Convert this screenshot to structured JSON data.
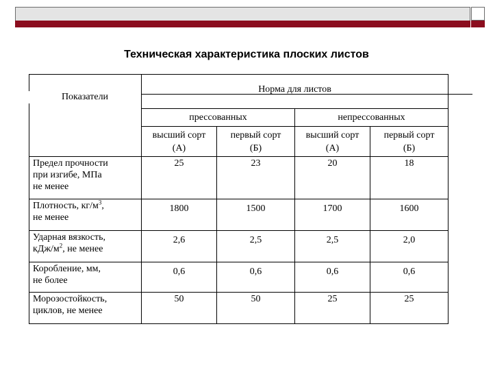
{
  "document": {
    "title": "Техническая характеристика плоских листов",
    "header": {
      "param_col": "Показатели",
      "norm": "Норма для листов",
      "groups": [
        "прессованных",
        "непрессованных"
      ],
      "grades": [
        {
          "line1": "высший сорт",
          "line2": "(А)"
        },
        {
          "line1": "первый сорт",
          "line2": "(Б)"
        },
        {
          "line1": "высший сорт",
          "line2": "(А)"
        },
        {
          "line1": "первый сорт",
          "line2": "(Б)"
        }
      ]
    },
    "rows": [
      {
        "label_lines": [
          "Предел прочности",
          "при изгибе, МПа",
          "не менее"
        ],
        "values": [
          "25",
          "23",
          "20",
          "18"
        ]
      },
      {
        "label_lines": [
          "Плотность, кг/м",
          " не менее"
        ],
        "label_sup": "3",
        "label_after_sup": ",",
        "values": [
          "1800",
          "1500",
          "1700",
          "1600"
        ]
      },
      {
        "label_lines": [
          "Ударная вязкость,",
          "кДж/м",
          ", не менее"
        ],
        "label_sup": "2",
        "values": [
          "2,6",
          "2,5",
          "2,5",
          "2,0"
        ]
      },
      {
        "label_lines": [
          "Коробление, мм,",
          " не более"
        ],
        "values": [
          "0,6",
          "0,6",
          "0,6",
          "0,6"
        ]
      },
      {
        "label_lines": [
          "Морозостойкость,",
          "циклов, не менее"
        ],
        "values": [
          "50",
          "50",
          "25",
          "25"
        ]
      }
    ]
  },
  "colors": {
    "accent_bar": "#8b0d1e",
    "top_bar": "#e4e4e4"
  }
}
